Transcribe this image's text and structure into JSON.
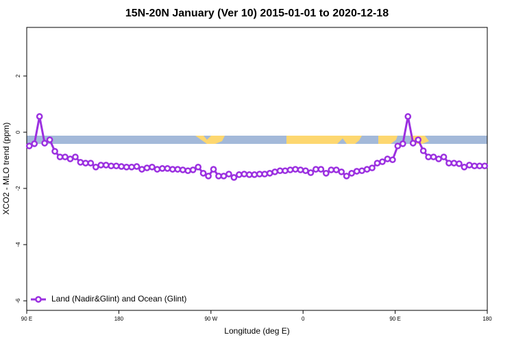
{
  "chart_data": {
    "type": "line",
    "title": "15N-20N January (Ver 10)   2015-01-01 to 2020-12-18",
    "xlabel": "Longitude (deg E)",
    "ylabel": "XCO2 - MLO trend (ppm)",
    "x": [
      92.5,
      97.5,
      102.5,
      107.5,
      112.5,
      117.5,
      122.5,
      127.5,
      132.5,
      137.5,
      142.5,
      147.5,
      152.5,
      157.5,
      162.5,
      167.5,
      172.5,
      177.5,
      182.5,
      187.5,
      192.5,
      197.5,
      202.5,
      207.5,
      212.5,
      217.5,
      222.5,
      227.5,
      232.5,
      237.5,
      242.5,
      247.5,
      252.5,
      257.5,
      262.5,
      267.5,
      272.5,
      277.5,
      282.5,
      287.5,
      292.5,
      297.5,
      302.5,
      307.5,
      312.5,
      317.5,
      322.5,
      327.5,
      332.5,
      337.5,
      342.5,
      347.5,
      352.5,
      357.5,
      362.5,
      367.5,
      372.5,
      377.5,
      382.5,
      387.5,
      392.5,
      397.5,
      402.5,
      407.5,
      412.5,
      417.5,
      422.5,
      427.5,
      432.5,
      437.5,
      442.5,
      447.5,
      452.5,
      457.5,
      462.5,
      467.5,
      472.5,
      477.5,
      482.5,
      487.5,
      492.5,
      497.5,
      502.5,
      507.5,
      512.5,
      517.5,
      522.5,
      527.5,
      532.5,
      537.5
    ],
    "series": [
      {
        "name": "Land (Nadir&Glint) and Ocean (Glint)",
        "color": "#9b30e0",
        "values": [
          -0.49,
          -0.41,
          0.56,
          -0.39,
          -0.27,
          -0.68,
          -0.88,
          -0.88,
          -0.95,
          -0.88,
          -1.07,
          -1.1,
          -1.1,
          -1.24,
          -1.17,
          -1.17,
          -1.2,
          -1.2,
          -1.22,
          -1.24,
          -1.24,
          -1.22,
          -1.32,
          -1.27,
          -1.24,
          -1.32,
          -1.29,
          -1.29,
          -1.32,
          -1.32,
          -1.34,
          -1.37,
          -1.34,
          -1.24,
          -1.46,
          -1.56,
          -1.32,
          -1.56,
          -1.56,
          -1.49,
          -1.61,
          -1.51,
          -1.49,
          -1.51,
          -1.51,
          -1.49,
          -1.49,
          -1.46,
          -1.41,
          -1.37,
          -1.37,
          -1.34,
          -1.32,
          -1.34,
          -1.37,
          -1.44,
          -1.32,
          -1.32,
          -1.46,
          -1.34,
          -1.34,
          -1.41,
          -1.56,
          -1.46,
          -1.39,
          -1.37,
          -1.32,
          -1.27,
          -1.1,
          -1.05,
          -0.95,
          -0.98,
          -0.49,
          -0.41,
          0.56,
          -0.39,
          -0.27,
          -0.66,
          -0.88,
          -0.88,
          -0.95,
          -0.88,
          -1.1,
          -1.1,
          -1.12,
          -1.24,
          -1.17,
          -1.2,
          -1.2,
          -1.2
        ]
      }
    ],
    "xlim": [
      90,
      540
    ],
    "xticks": [
      {
        "value": 90,
        "label": "90 E"
      },
      180,
      {
        "value": 270,
        "label": "90 W"
      },
      {
        "value": 360,
        "label": "0"
      },
      {
        "value": 450,
        "label": "90 E"
      },
      {
        "value": 540,
        "label": "180"
      }
    ],
    "ylim": [
      -6.34,
      3.73
    ],
    "yticks": [
      -6,
      -4,
      -2,
      0,
      2
    ],
    "legend": "bottom-left"
  }
}
